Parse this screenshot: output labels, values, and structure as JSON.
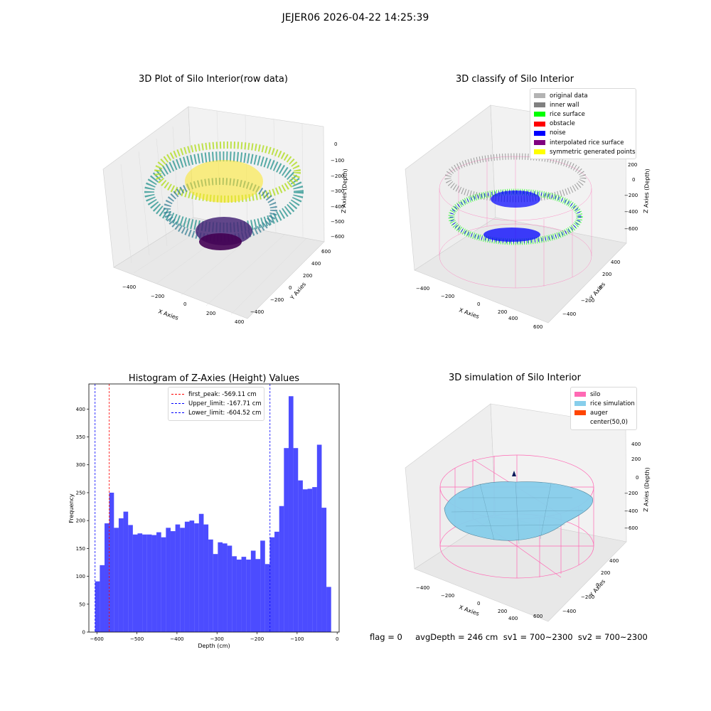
{
  "figure": {
    "suptitle": "JEJER06 2026-04-22 14:25:39",
    "footer": "flag = 0     avgDepth = 246 cm  sv1 = 700~2300  sv2 = 700~2300"
  },
  "panels": {
    "raw": {
      "title": "3D Plot of Silo Interior(row data)",
      "xlabel": "X Axies",
      "ylabel": "Y Axies",
      "zlabel": "Z Axies (Depth)",
      "x_ticks": [
        "−400",
        "−200",
        "0",
        "200",
        "400"
      ],
      "y_ticks": [
        "−400",
        "−200",
        "0",
        "200",
        "400",
        "600"
      ],
      "z_ticks": [
        "0",
        "−100",
        "−200",
        "−300",
        "−400",
        "−500",
        "−600"
      ]
    },
    "classify": {
      "title": "3D classify of Silo Interior",
      "xlabel": "X Axies",
      "ylabel": "Y Axies",
      "zlabel": "Z Axies (Depth)",
      "x_ticks": [
        "−400",
        "−200",
        "0",
        "200",
        "400",
        "600"
      ],
      "y_ticks": [
        "−400",
        "−200",
        "0",
        "200",
        "400"
      ],
      "z_ticks": [
        "200",
        "0",
        "−200",
        "−400",
        "−600"
      ],
      "legend": [
        {
          "label": "original data",
          "color": "#b3b3b3"
        },
        {
          "label": "inner wall",
          "color": "#808080"
        },
        {
          "label": "rice surface",
          "color": "#00ff00"
        },
        {
          "label": "obstacle",
          "color": "#ff0000"
        },
        {
          "label": "noise",
          "color": "#0000ff"
        },
        {
          "label": "interpolated rice surface",
          "color": "#800080"
        },
        {
          "label": "symmetric generated points",
          "color": "#ffff00"
        }
      ]
    },
    "simulation": {
      "title": "3D simulation of Silo Interior",
      "xlabel": "X Axies",
      "ylabel": "Y Axies",
      "zlabel": "Z Axies (Depth)",
      "x_ticks": [
        "−400",
        "−200",
        "0",
        "200",
        "400",
        "600"
      ],
      "y_ticks": [
        "−400",
        "−200",
        "0",
        "200",
        "400"
      ],
      "z_ticks": [
        "400",
        "200",
        "0",
        "−200",
        "−400",
        "−600"
      ],
      "legend": [
        {
          "label": "silo",
          "color": "#ff69b4"
        },
        {
          "label": "rice simulation",
          "color": "#87ceeb"
        },
        {
          "label": "auger",
          "color": "#ff4500"
        },
        {
          "label": "center(50,0)",
          "color": "#ffffff"
        }
      ]
    }
  },
  "chart_data": {
    "type": "bar",
    "title": "Histogram of Z-Axies (Height) Values",
    "xlabel": "Depth (cm)",
    "ylabel": "Frequency",
    "xlim": [
      -620,
      5
    ],
    "ylim": [
      0,
      445
    ],
    "x_ticks": [
      -600,
      -500,
      -400,
      -300,
      -200,
      -100,
      0
    ],
    "x_tick_labels": [
      "−600",
      "−500",
      "−400",
      "−300",
      "−200",
      "−100",
      "0"
    ],
    "y_ticks": [
      0,
      50,
      100,
      150,
      200,
      250,
      300,
      350,
      400
    ],
    "bar_color": "#0000ff",
    "bin_start": -604.5,
    "bin_width": 11.79,
    "values": [
      91,
      120,
      195,
      250,
      187,
      204,
      216,
      192,
      175,
      177,
      175,
      175,
      174,
      179,
      170,
      187,
      181,
      193,
      187,
      198,
      200,
      195,
      212,
      193,
      166,
      140,
      161,
      159,
      155,
      136,
      130,
      135,
      130,
      146,
      131,
      164,
      122,
      170,
      180,
      226,
      330,
      423,
      330,
      272,
      256,
      257,
      260,
      336,
      223,
      81
    ],
    "lines": [
      {
        "label": "first_peak: -569.11 cm",
        "x": -569.11,
        "color": "#ff0000"
      },
      {
        "label": "Upper_limit: -167.71 cm",
        "x": -167.71,
        "color": "#0000ff"
      },
      {
        "label": "Lower_limit: -604.52 cm",
        "x": -604.52,
        "color": "#0000ff"
      }
    ]
  }
}
